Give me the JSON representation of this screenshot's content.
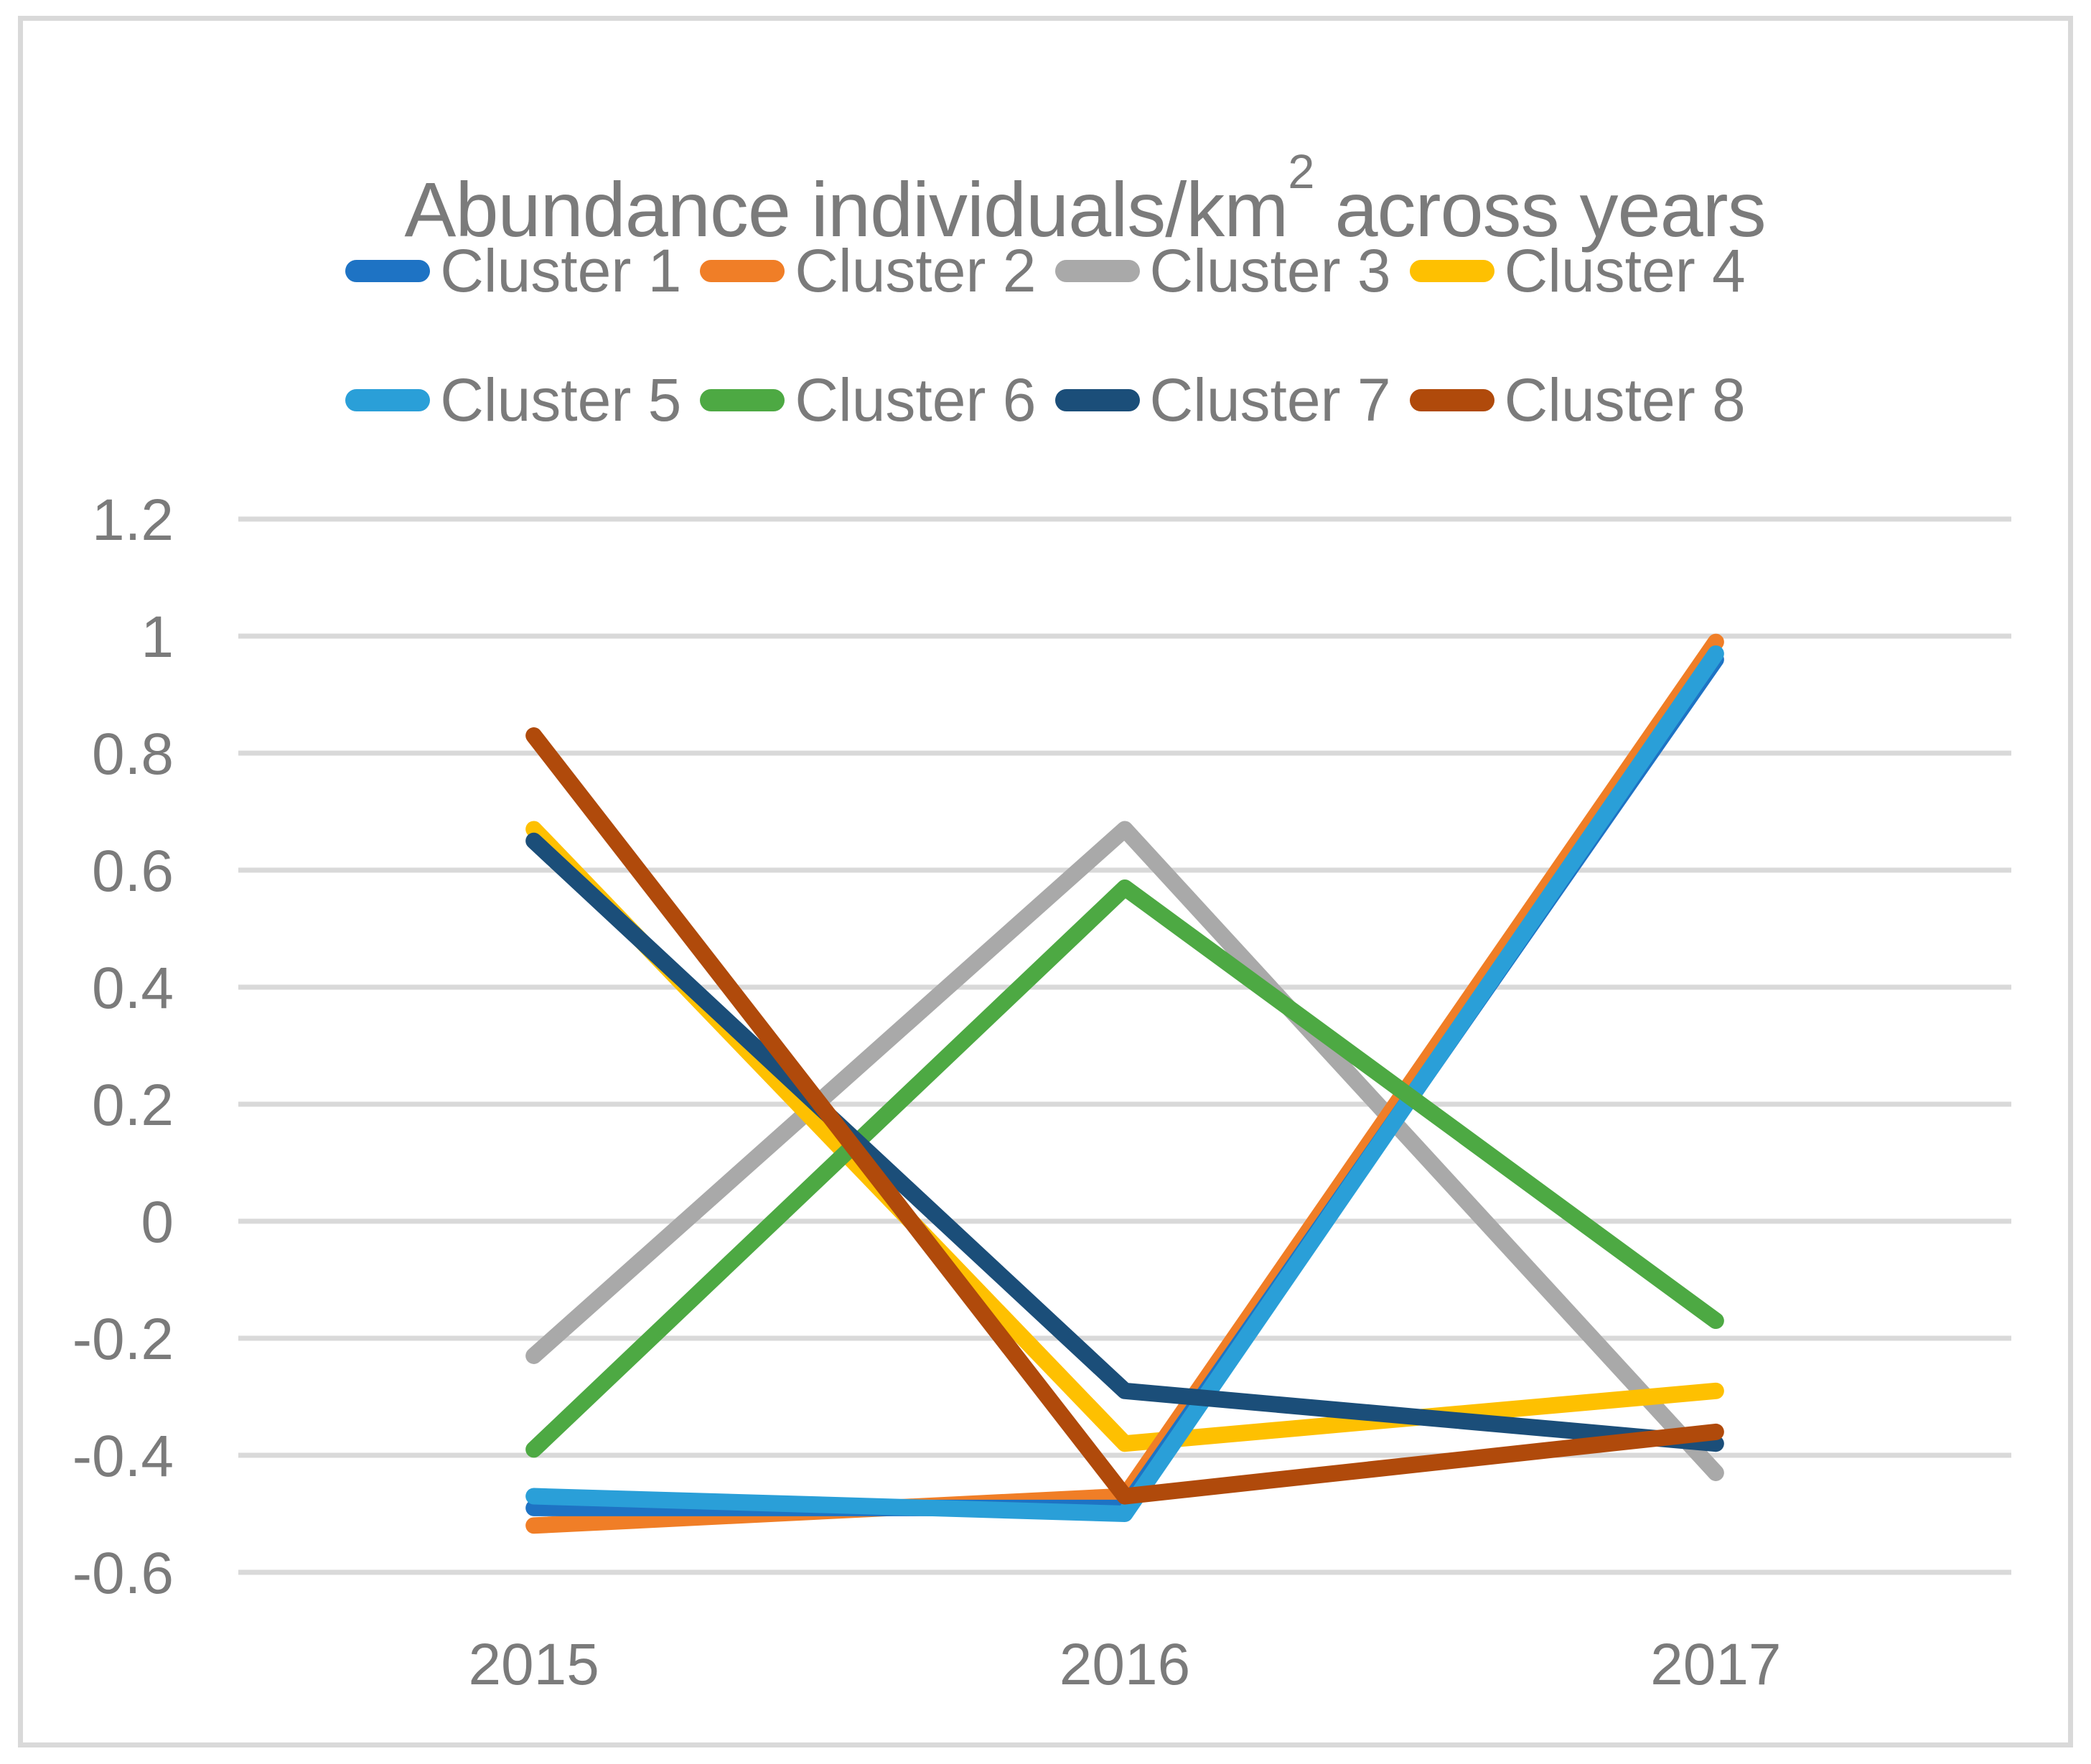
{
  "title": {
    "pre": "Abundance individuals/km",
    "sup": "2",
    "post": " across years"
  },
  "chart_data": {
    "type": "line",
    "title": "Abundance individuals/km2 across years",
    "x": [
      "2015",
      "2016",
      "2017"
    ],
    "y_ticks": [
      {
        "label": "1.2",
        "v": 1.2
      },
      {
        "label": "1",
        "v": 1.0
      },
      {
        "label": "0.8",
        "v": 0.8
      },
      {
        "label": "0.6",
        "v": 0.6
      },
      {
        "label": "0.4",
        "v": 0.4
      },
      {
        "label": "0.2",
        "v": 0.2
      },
      {
        "label": "0",
        "v": 0.0
      },
      {
        "label": "-0.2",
        "v": -0.2
      },
      {
        "label": "-0.4",
        "v": -0.4
      },
      {
        "label": "-0.6",
        "v": -0.6
      }
    ],
    "ylim": [
      -0.6,
      1.2
    ],
    "grid": "horizontal-only",
    "grid_color": "#D9D9D9",
    "text_color": "#7B7B7B",
    "legend_position": "top-two-rows",
    "series": [
      {
        "name": "Cluster 1",
        "color": "#1E73C4",
        "values": [
          -0.49,
          -0.49,
          0.96
        ]
      },
      {
        "name": "Cluster 2",
        "color": "#F07E27",
        "values": [
          -0.52,
          -0.47,
          0.99
        ]
      },
      {
        "name": "Cluster 3",
        "color": "#A9A9A9",
        "values": [
          -0.23,
          0.67,
          -0.43
        ]
      },
      {
        "name": "Cluster 4",
        "color": "#FEC001",
        "values": [
          0.67,
          -0.38,
          -0.29
        ]
      },
      {
        "name": "Cluster 5",
        "color": "#2A9FD8",
        "values": [
          -0.47,
          -0.5,
          0.97
        ]
      },
      {
        "name": "Cluster 6",
        "color": "#4DA943",
        "values": [
          -0.39,
          0.57,
          -0.17
        ]
      },
      {
        "name": "Cluster 7",
        "color": "#1B4E79",
        "values": [
          0.65,
          -0.29,
          -0.38
        ]
      },
      {
        "name": "Cluster 8",
        "color": "#B04A0B",
        "values": [
          0.83,
          -0.47,
          -0.36
        ]
      }
    ]
  }
}
